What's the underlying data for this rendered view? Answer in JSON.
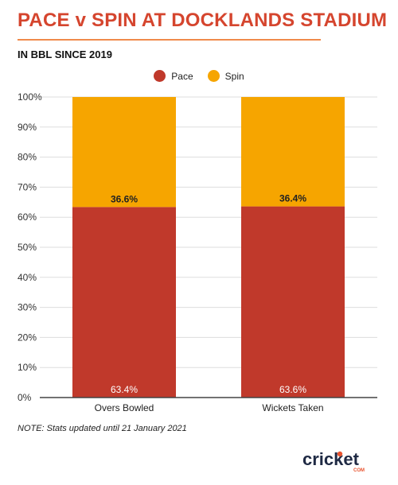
{
  "title": "PACE v SPIN AT DOCKLANDS STADIUM",
  "subtitle": "IN BBL SINCE 2019",
  "note": "NOTE: Stats updated until 21 January 2021",
  "logo": {
    "text": "cricket",
    "subtext": "COM"
  },
  "colors": {
    "title": "#d5452e",
    "title_rule": "#f08a4b",
    "pace": "#c0392b",
    "spin": "#f6a500",
    "grid": "#dddddd",
    "axis": "#444444"
  },
  "chart_data": {
    "type": "bar",
    "stacked": true,
    "percent": true,
    "categories": [
      "Overs Bowled",
      "Wickets Taken"
    ],
    "series": [
      {
        "name": "Pace",
        "color": "#c0392b",
        "values": [
          63.4,
          63.6
        ],
        "labels": [
          "63.4%",
          "63.6%"
        ],
        "label_position": "bottom"
      },
      {
        "name": "Spin",
        "color": "#f6a500",
        "values": [
          36.6,
          36.4
        ],
        "labels": [
          "36.6%",
          "36.4%"
        ],
        "label_position": "bottom"
      }
    ],
    "y_ticks": [
      "0%",
      "10%",
      "20%",
      "30%",
      "40%",
      "50%",
      "60%",
      "70%",
      "80%",
      "90%",
      "100%"
    ],
    "ylim": [
      0,
      100
    ],
    "grid": true,
    "legend": "top-center",
    "xlabel": "",
    "ylabel": ""
  }
}
